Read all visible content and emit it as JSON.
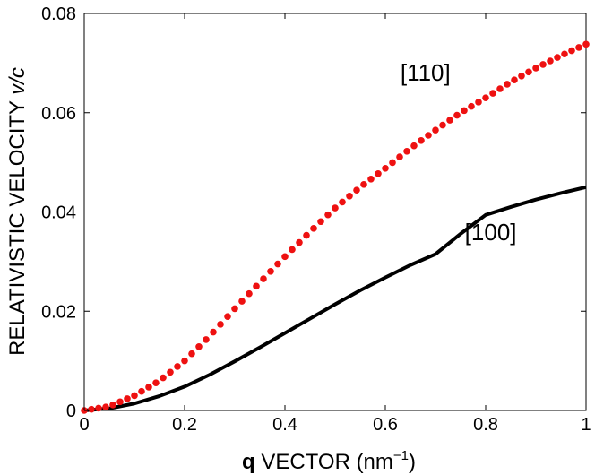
{
  "chart_data": {
    "type": "line",
    "title": "",
    "xlabel": {
      "bold": "q",
      "text": " VECTOR  (nm",
      "sup": "−1",
      "close": ")"
    },
    "ylabel": {
      "text": "RELATIVISTIC VELOCITY  ",
      "italic": "v/c"
    },
    "xlim": [
      0,
      1
    ],
    "ylim": [
      0,
      0.08
    ],
    "xticks": [
      {
        "v": 0,
        "label": "0"
      },
      {
        "v": 0.2,
        "label": "0.2"
      },
      {
        "v": 0.4,
        "label": "0.4"
      },
      {
        "v": 0.6,
        "label": "0.6"
      },
      {
        "v": 0.8,
        "label": "0.8"
      },
      {
        "v": 1,
        "label": "1"
      }
    ],
    "yticks": [
      {
        "v": 0,
        "label": "0"
      },
      {
        "v": 0.02,
        "label": "0.02"
      },
      {
        "v": 0.04,
        "label": "0.04"
      },
      {
        "v": 0.06,
        "label": "0.06"
      },
      {
        "v": 0.08,
        "label": "0.08"
      }
    ],
    "grid": false,
    "series": [
      {
        "name": "[100]",
        "style": "solid",
        "color": "#000000",
        "x": [
          0,
          0.05,
          0.1,
          0.15,
          0.2,
          0.25,
          0.3,
          0.35,
          0.4,
          0.45,
          0.5,
          0.55,
          0.6,
          0.65,
          0.7,
          0.75,
          0.8,
          0.85,
          0.9,
          0.95,
          1.0
        ],
        "y": [
          0,
          0.0004,
          0.0014,
          0.0029,
          0.0048,
          0.0072,
          0.0099,
          0.0127,
          0.0156,
          0.0185,
          0.0214,
          0.0242,
          0.0268,
          0.0293,
          0.0315,
          0.0356,
          0.0394,
          0.041,
          0.0425,
          0.0438,
          0.045
        ]
      },
      {
        "name": "[110]",
        "style": "dotted",
        "color": "#ee1111",
        "x": [
          0,
          0.05,
          0.1,
          0.15,
          0.2,
          0.25,
          0.3,
          0.35,
          0.4,
          0.45,
          0.5,
          0.55,
          0.6,
          0.65,
          0.7,
          0.75,
          0.8,
          0.85,
          0.9,
          0.95,
          1.0
        ],
        "y": [
          0,
          0.0008,
          0.003,
          0.006,
          0.01,
          0.015,
          0.0205,
          0.0258,
          0.031,
          0.036,
          0.0408,
          0.045,
          0.0488,
          0.0528,
          0.0565,
          0.06,
          0.063,
          0.0662,
          0.069,
          0.0715,
          0.0738
        ]
      }
    ],
    "annotations": [
      {
        "text": "[110]",
        "x": 0.68,
        "y": 0.0665
      },
      {
        "text": "[100]",
        "x": 0.81,
        "y": 0.0343
      }
    ]
  }
}
